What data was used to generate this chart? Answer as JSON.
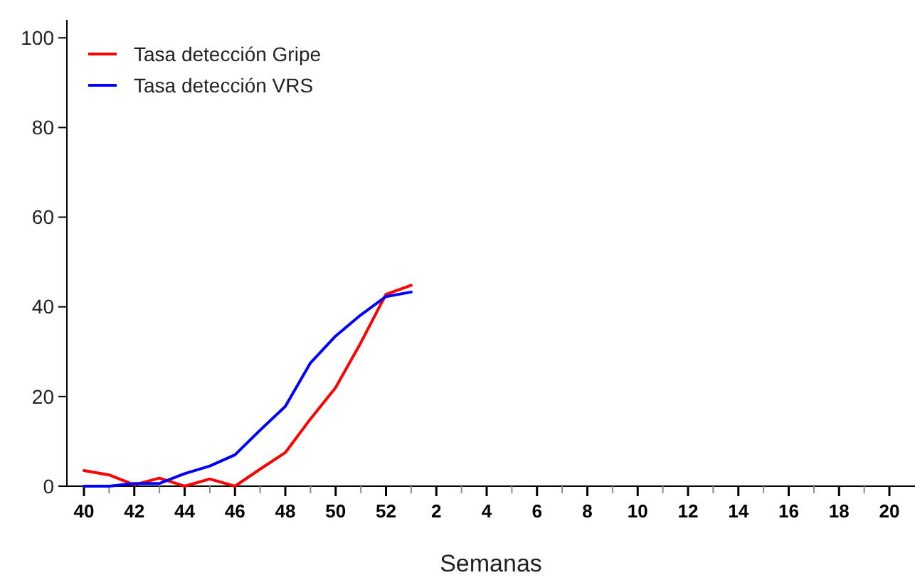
{
  "chart_data": {
    "type": "line",
    "xlabel": "Semanas",
    "categories": [
      "40",
      null,
      "42",
      null,
      "44",
      null,
      "46",
      null,
      "48",
      null,
      "50",
      null,
      "52",
      null,
      "2",
      null,
      "4",
      null,
      "6",
      null,
      "8",
      null,
      "10",
      null,
      "12",
      null,
      "14",
      null,
      "16",
      null,
      "18",
      null,
      "20"
    ],
    "series": [
      {
        "name": "Tasa detección Gripe",
        "color": "#ff0000",
        "values": [
          3.5,
          2.5,
          0.3,
          1.8,
          0,
          1.6,
          0,
          3.8,
          7.5,
          15,
          22,
          32,
          42.8,
          44.8,
          null,
          null,
          null,
          null,
          null,
          null,
          null,
          null,
          null,
          null,
          null,
          null,
          null,
          null,
          null,
          null,
          null,
          null,
          null
        ]
      },
      {
        "name": "Tasa detección VRS",
        "color": "#0000ff",
        "values": [
          0,
          0,
          0.6,
          0.6,
          2.8,
          4.5,
          7,
          12.5,
          17.8,
          27.5,
          33.5,
          38.2,
          42.3,
          43.3,
          null,
          null,
          null,
          null,
          null,
          null,
          null,
          null,
          null,
          null,
          null,
          null,
          null,
          null,
          null,
          null,
          null,
          null,
          null
        ]
      }
    ],
    "ylim": [
      0,
      104
    ],
    "yticks": [
      0,
      20,
      40,
      60,
      80,
      100
    ],
    "legend": "top left",
    "grid": false
  }
}
